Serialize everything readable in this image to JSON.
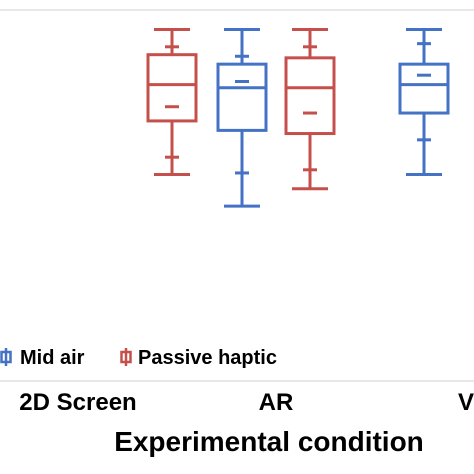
{
  "chart_data": {
    "type": "box",
    "xlabel": "Experimental condition",
    "categories": [
      "2D Screen",
      "AR",
      "V"
    ],
    "series": [
      {
        "name": "Mid air",
        "color": "#4472C4",
        "boxes": [
          null,
          {
            "category": "AR",
            "whisker_low": 12,
            "q1": 60,
            "median": 87,
            "q3": 102,
            "whisker_high": 124,
            "markers": [
              33,
              91,
              107
            ]
          },
          {
            "category": "V",
            "whisker_low": 32,
            "q1": 71,
            "median": 89,
            "q3": 102,
            "whisker_high": 124,
            "markers": [
              54,
              95,
              115
            ]
          }
        ]
      },
      {
        "name": "Passive haptic",
        "color": "#C5504B",
        "boxes": [
          {
            "category": "2D Screen",
            "whisker_low": 32,
            "q1": 66,
            "median": 89,
            "q3": 108,
            "whisker_high": 124,
            "markers": [
              43,
              75,
              113
            ]
          },
          {
            "category": "AR",
            "whisker_low": 23,
            "q1": 58,
            "median": 87,
            "q3": 106,
            "whisker_high": 124,
            "markers": [
              35,
              71,
              113
            ]
          },
          null
        ]
      }
    ],
    "ylim": [
      0,
      130
    ],
    "legend": {
      "position": "bottom-left",
      "items": [
        "Mid air",
        "Passive haptic"
      ]
    }
  }
}
